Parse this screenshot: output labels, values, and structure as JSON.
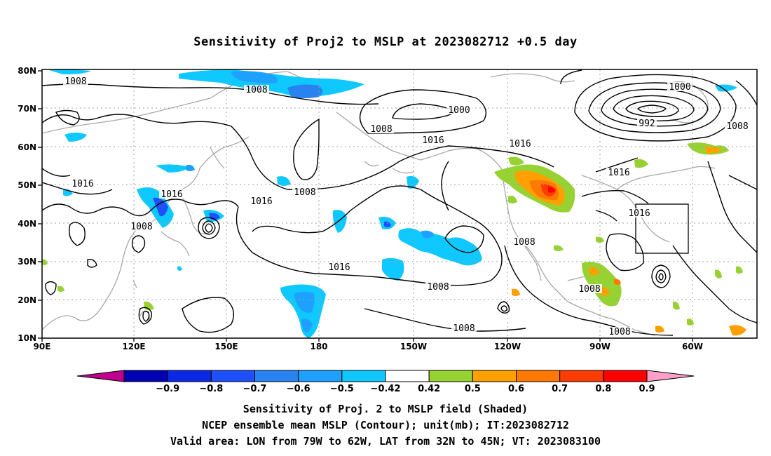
{
  "title": "Sensitivity of Proj2 to MSLP at 2023082712 +0.5 day",
  "lat_labels": [
    "80N",
    "70N",
    "60N",
    "50N",
    "40N",
    "30N",
    "20N",
    "10N"
  ],
  "lon_labels": [
    "90E",
    "120E",
    "150E",
    "180",
    "150W",
    "120W",
    "90W",
    "60W"
  ],
  "contour_labels": [
    "1008",
    "1008",
    "1000",
    "1000",
    "992",
    "1016",
    "1008",
    "1016",
    "1008",
    "1016",
    "1016",
    "1008",
    "1016",
    "1008",
    "1016",
    "1016",
    "1008",
    "1008",
    "1008",
    "1008",
    "1016",
    "1008"
  ],
  "colorbar": {
    "labels": [
      "-0.9",
      "-0.8",
      "-0.7",
      "-0.6",
      "-0.5",
      "-0.42",
      "0.42",
      "0.5",
      "0.6",
      "0.7",
      "0.8",
      "0.9"
    ],
    "colors": [
      "#c1008f",
      "#0000b4",
      "#0a28e6",
      "#1e50ff",
      "#2882f0",
      "#1ea0ff",
      "#0fc8ff",
      "#ffffff",
      "#96d232",
      "#ffa000",
      "#ff7800",
      "#ff3c00",
      "#ff0000",
      "#ffa0c8"
    ]
  },
  "footer": {
    "line1": "Sensitivity of Proj. 2 to MSLP field (Shaded)",
    "line2": "NCEP ensemble mean MSLP (Contour); unit(mb); IT:2023082712",
    "line3": "Valid area: LON from 79W to 62W, LAT from 32N to 45N; VT: 2023083100"
  }
}
